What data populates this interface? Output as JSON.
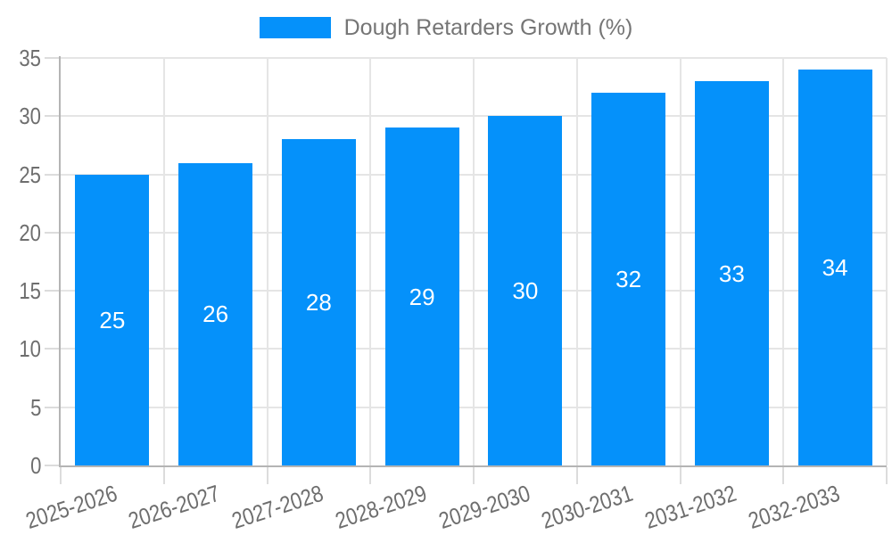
{
  "chart_data": {
    "type": "bar",
    "title": "",
    "legend": "Dough Retarders Growth (%)",
    "legend_position": "top",
    "categories": [
      "2025-2026",
      "2026-2027",
      "2027-2028",
      "2028-2029",
      "2029-2030",
      "2030-2031",
      "2031-2032",
      "2032-2033"
    ],
    "values": [
      25,
      26,
      28,
      29,
      30,
      32,
      33,
      34
    ],
    "xlabel": "",
    "ylabel": "",
    "ylim": [
      0,
      35
    ],
    "yticks": [
      0,
      5,
      10,
      15,
      20,
      25,
      30,
      35
    ],
    "grid": true,
    "colors": {
      "bar": "#0591fa",
      "value_label": "#ffffff",
      "axis_label": "#6e6e6e",
      "legend_text": "#757575",
      "gridline": "#e5e5e5",
      "tick": "#dcdcdc",
      "axis_line": "#b4b4b4",
      "background": "#ffffff"
    }
  }
}
